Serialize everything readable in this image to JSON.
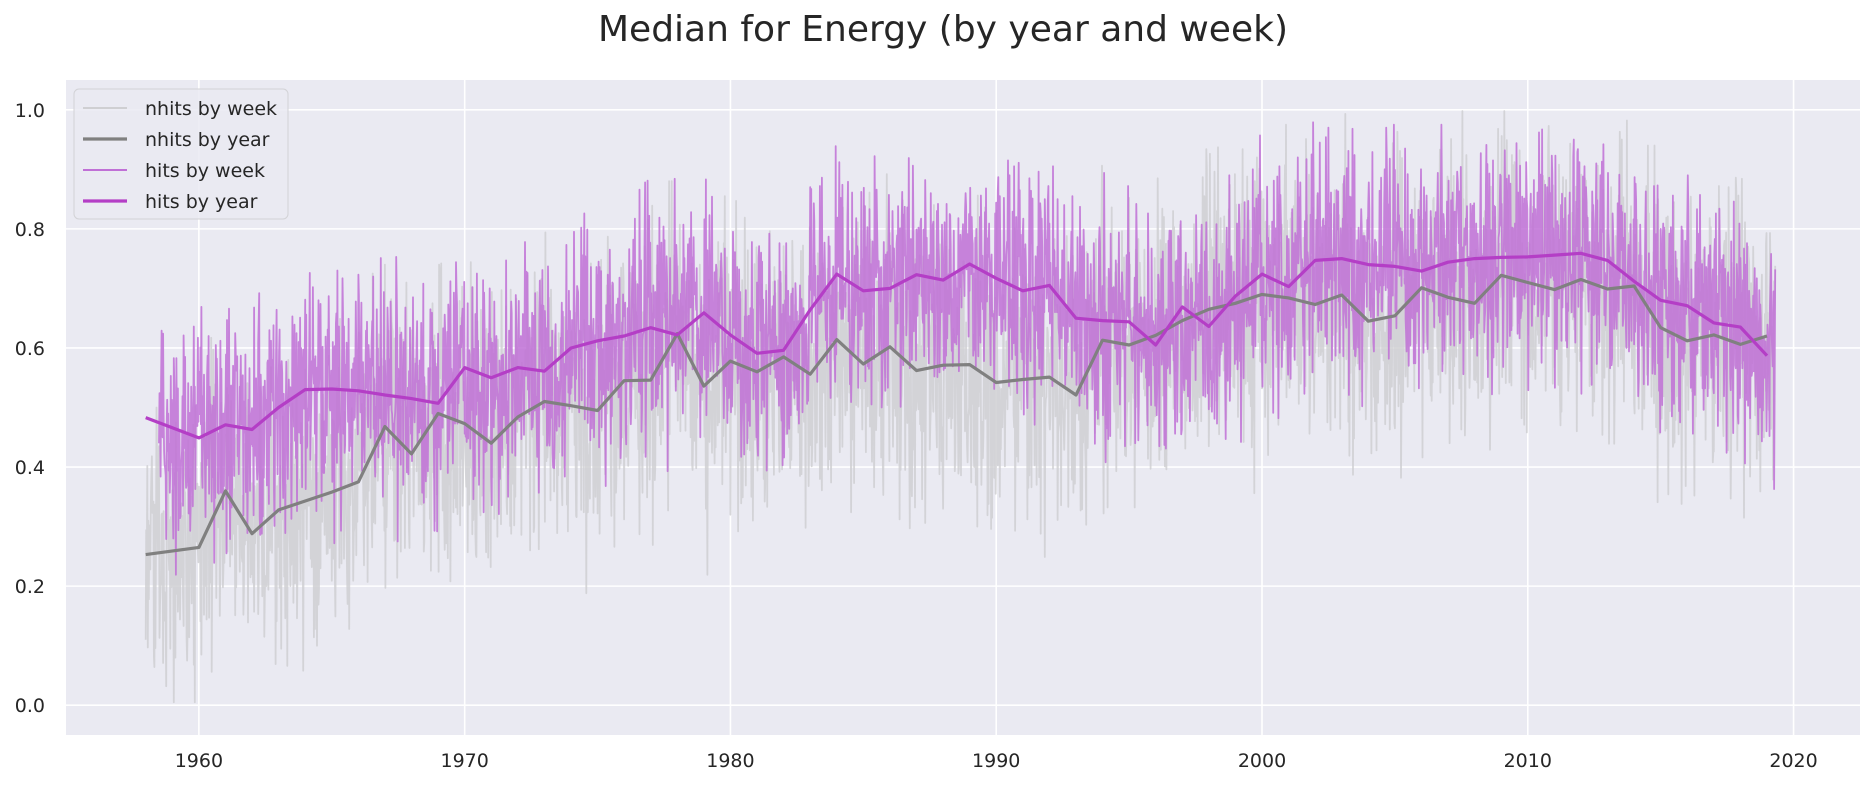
{
  "chart_data": {
    "type": "line",
    "title": "Median for Energy (by year and week)",
    "xlabel": "",
    "ylabel": "",
    "xlim": [
      1955,
      2022.5
    ],
    "ylim": [
      -0.05,
      1.05
    ],
    "x_ticks": [
      1960,
      1970,
      1980,
      1990,
      2000,
      2010,
      2020
    ],
    "y_ticks": [
      0.0,
      0.2,
      0.4,
      0.6,
      0.8,
      1.0
    ],
    "grid": true,
    "legend_position": "top-left",
    "series": [
      {
        "name": "nhits by week",
        "color": "#cfcfd2",
        "kind": "weekly",
        "x_range": [
          1958.0,
          2019.3
        ],
        "points_per_year": 52,
        "values_source": "nhits by year",
        "noise_amplitude": 0.32,
        "values": []
      },
      {
        "name": "nhits by year",
        "color": "#808080",
        "kind": "yearly",
        "x": [
          1958,
          1960,
          1961,
          1962,
          1963,
          1964,
          1965,
          1966,
          1967,
          1968,
          1969,
          1970,
          1971,
          1972,
          1973,
          1974,
          1975,
          1976,
          1977,
          1978,
          1979,
          1980,
          1981,
          1982,
          1983,
          1984,
          1985,
          1986,
          1987,
          1988,
          1989,
          1990,
          1991,
          1992,
          1993,
          1994,
          1995,
          1996,
          1997,
          1998,
          1999,
          2000,
          2001,
          2002,
          2003,
          2004,
          2005,
          2006,
          2007,
          2008,
          2009,
          2010,
          2011,
          2012,
          2013,
          2014,
          2015,
          2016,
          2017,
          2018,
          2019
        ],
        "values": [
          0.253,
          0.265,
          0.36,
          0.288,
          0.328,
          0.343,
          0.358,
          0.375,
          0.468,
          0.422,
          0.49,
          0.473,
          0.44,
          0.484,
          0.51,
          0.503,
          0.495,
          0.545,
          0.546,
          0.624,
          0.536,
          0.578,
          0.56,
          0.585,
          0.556,
          0.614,
          0.573,
          0.602,
          0.562,
          0.571,
          0.572,
          0.542,
          0.547,
          0.551,
          0.521,
          0.613,
          0.605,
          0.621,
          0.646,
          0.665,
          0.675,
          0.69,
          0.684,
          0.673,
          0.689,
          0.645,
          0.654,
          0.701,
          0.685,
          0.675,
          0.722,
          0.71,
          0.698,
          0.715,
          0.699,
          0.704,
          0.634,
          0.612,
          0.622,
          0.606,
          0.62
        ]
      },
      {
        "name": "hits by week",
        "color": "#c070d6",
        "kind": "weekly",
        "x_range": [
          1958.5,
          2019.3
        ],
        "points_per_year": 52,
        "values_source": "hits by year",
        "noise_amplitude": 0.26,
        "values": []
      },
      {
        "name": "hits by year",
        "color": "#b43ec6",
        "kind": "yearly",
        "x": [
          1958,
          1960,
          1961,
          1962,
          1963,
          1964,
          1965,
          1966,
          1967,
          1968,
          1969,
          1970,
          1971,
          1972,
          1973,
          1974,
          1975,
          1976,
          1977,
          1978,
          1979,
          1980,
          1981,
          1982,
          1983,
          1984,
          1985,
          1986,
          1987,
          1988,
          1989,
          1990,
          1991,
          1992,
          1993,
          1994,
          1995,
          1996,
          1997,
          1998,
          1999,
          2000,
          2001,
          2002,
          2003,
          2004,
          2005,
          2006,
          2007,
          2008,
          2009,
          2010,
          2011,
          2012,
          2013,
          2014,
          2015,
          2016,
          2017,
          2018,
          2019
        ],
        "values": [
          0.483,
          0.449,
          0.471,
          0.463,
          0.5,
          0.53,
          0.531,
          0.528,
          0.521,
          0.515,
          0.507,
          0.567,
          0.55,
          0.567,
          0.561,
          0.6,
          0.612,
          0.62,
          0.634,
          0.622,
          0.659,
          0.622,
          0.591,
          0.596,
          0.664,
          0.724,
          0.696,
          0.7,
          0.723,
          0.714,
          0.741,
          0.717,
          0.696,
          0.705,
          0.65,
          0.646,
          0.644,
          0.605,
          0.669,
          0.636,
          0.687,
          0.724,
          0.703,
          0.747,
          0.75,
          0.74,
          0.737,
          0.729,
          0.744,
          0.75,
          0.752,
          0.753,
          0.756,
          0.759,
          0.747,
          0.712,
          0.68,
          0.671,
          0.642,
          0.635,
          0.587
        ]
      }
    ]
  }
}
